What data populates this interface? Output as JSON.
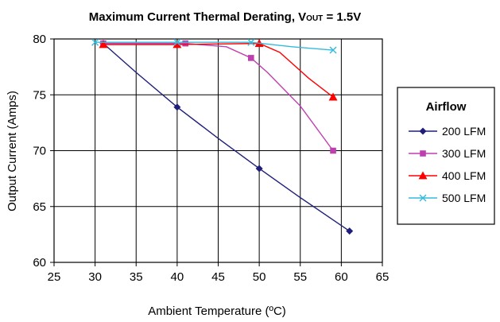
{
  "chart_data": {
    "type": "line",
    "title_main": "Maximum Current Thermal Derating, V",
    "title_sub": "OUT",
    "title_tail": " = 1.5V",
    "xlabel": "Ambient Temperature (ºC)",
    "ylabel": "Output Current (Amps)",
    "xlim": [
      25,
      65
    ],
    "ylim": [
      60,
      80
    ],
    "xticks": [
      25,
      30,
      35,
      40,
      45,
      50,
      55,
      60,
      65
    ],
    "yticks": [
      60,
      65,
      70,
      75,
      80
    ],
    "grid": "vertical-and-horizontal",
    "legend_title": "Airflow",
    "legend_position": "right",
    "series": [
      {
        "name": "200 LFM",
        "color": "#1f1f7a",
        "marker": "diamond",
        "line": [
          [
            31,
            79.6
          ],
          [
            35,
            77.0
          ],
          [
            40,
            73.9
          ],
          [
            45,
            71.1
          ],
          [
            50,
            68.4
          ],
          [
            55,
            65.8
          ],
          [
            61,
            62.8
          ]
        ],
        "markers": [
          [
            31,
            79.6
          ],
          [
            40,
            73.9
          ],
          [
            50,
            68.4
          ],
          [
            61,
            62.8
          ]
        ]
      },
      {
        "name": "300 LFM",
        "color": "#c03fb0",
        "marker": "square",
        "line": [
          [
            31,
            79.6
          ],
          [
            40,
            79.6
          ],
          [
            41,
            79.6
          ],
          [
            46,
            79.3
          ],
          [
            49,
            78.3
          ],
          [
            51,
            77.0
          ],
          [
            55,
            74.0
          ],
          [
            59,
            70.0
          ]
        ],
        "markers": [
          [
            31,
            79.6
          ],
          [
            41,
            79.6
          ],
          [
            49,
            78.3
          ],
          [
            59,
            70.0
          ]
        ]
      },
      {
        "name": "400 LFM",
        "color": "#ff0000",
        "marker": "triangle",
        "line": [
          [
            31,
            79.5
          ],
          [
            40,
            79.5
          ],
          [
            50,
            79.6
          ],
          [
            52.5,
            78.8
          ],
          [
            56,
            76.5
          ],
          [
            59,
            74.8
          ]
        ],
        "markers": [
          [
            31,
            79.5
          ],
          [
            40,
            79.5
          ],
          [
            50,
            79.6
          ],
          [
            59,
            74.8
          ]
        ]
      },
      {
        "name": "500 LFM",
        "color": "#33bbdd",
        "marker": "x",
        "line": [
          [
            30,
            79.7
          ],
          [
            40,
            79.7
          ],
          [
            49,
            79.7
          ],
          [
            54,
            79.3
          ],
          [
            59,
            79.0
          ]
        ],
        "markers": [
          [
            30,
            79.7
          ],
          [
            40,
            79.7
          ],
          [
            49,
            79.7
          ],
          [
            59,
            79.0
          ]
        ]
      }
    ]
  }
}
